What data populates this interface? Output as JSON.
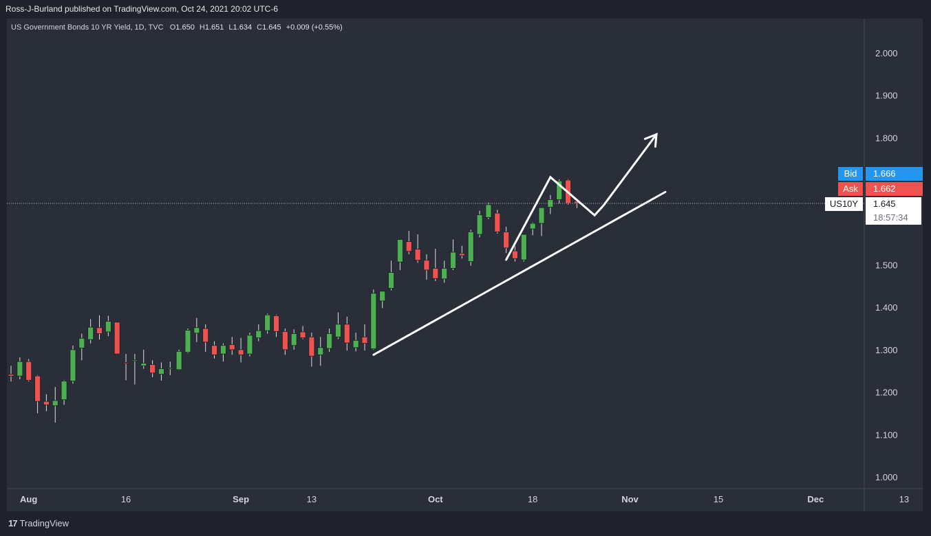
{
  "header": {
    "published": "Ross-J-Burland published on TradingView.com, Oct 24, 2021 20:02 UTC-6"
  },
  "legend": {
    "title": "US Government Bonds 10 YR Yield, 1D, TVC",
    "o_label": "O",
    "o": "1.650",
    "h_label": "H",
    "h": "1.651",
    "l_label": "L",
    "l": "1.634",
    "c_label": "C",
    "c": "1.645",
    "change": "+0.009 (+0.55%)"
  },
  "price_scale": {
    "bid_label": "Bid",
    "bid": "1.666",
    "ask_label": "Ask",
    "ask": "1.662",
    "symbol": "US10Y",
    "last": "1.645",
    "countdown": "18:57:34"
  },
  "colors": {
    "up": "#4caf50",
    "down": "#ef5350",
    "background": "#2a2e39",
    "drawing": "#ffffff",
    "bid": "#2196f3",
    "ask": "#ef5350"
  },
  "footer": {
    "brand": "TradingView"
  },
  "chart_data": {
    "type": "candlestick",
    "title": "US Government Bonds 10 YR Yield, 1D, TVC",
    "ylim": [
      0.97,
      2.1
    ],
    "y_ticks": [
      "2.000",
      "1.900",
      "1.800",
      "1.500",
      "1.400",
      "1.300",
      "1.200",
      "1.100",
      "1.000"
    ],
    "x_ticks": [
      {
        "label": "Aug",
        "i": 2
      },
      {
        "label": "16",
        "i": 13
      },
      {
        "label": "Sep",
        "i": 26
      },
      {
        "label": "13",
        "i": 34
      },
      {
        "label": "Oct",
        "i": 48
      },
      {
        "label": "18",
        "i": 59
      },
      {
        "label": "Nov",
        "i": 70
      },
      {
        "label": "15",
        "i": 80
      },
      {
        "label": "Dec",
        "i": 91
      },
      {
        "label": "13",
        "i": 101
      }
    ],
    "candles": [
      {
        "o": 1.242,
        "h": 1.262,
        "l": 1.225,
        "c": 1.238
      },
      {
        "o": 1.238,
        "h": 1.282,
        "l": 1.23,
        "c": 1.272
      },
      {
        "o": 1.272,
        "h": 1.278,
        "l": 1.225,
        "c": 1.228
      },
      {
        "o": 1.238,
        "h": 1.24,
        "l": 1.15,
        "c": 1.178
      },
      {
        "o": 1.178,
        "h": 1.195,
        "l": 1.155,
        "c": 1.17
      },
      {
        "o": 1.168,
        "h": 1.212,
        "l": 1.128,
        "c": 1.18
      },
      {
        "o": 1.182,
        "h": 1.228,
        "l": 1.17,
        "c": 1.226
      },
      {
        "o": 1.226,
        "h": 1.31,
        "l": 1.22,
        "c": 1.3
      },
      {
        "o": 1.304,
        "h": 1.338,
        "l": 1.275,
        "c": 1.327
      },
      {
        "o": 1.324,
        "h": 1.372,
        "l": 1.315,
        "c": 1.353
      },
      {
        "o": 1.352,
        "h": 1.381,
        "l": 1.324,
        "c": 1.338
      },
      {
        "o": 1.342,
        "h": 1.38,
        "l": 1.332,
        "c": 1.367
      },
      {
        "o": 1.365,
        "h": 1.365,
        "l": 1.29,
        "c": 1.29
      },
      {
        "o": 1.27,
        "h": 1.29,
        "l": 1.228,
        "c": 1.268
      },
      {
        "o": 1.275,
        "h": 1.29,
        "l": 1.218,
        "c": 1.276
      },
      {
        "o": 1.262,
        "h": 1.3,
        "l": 1.255,
        "c": 1.268
      },
      {
        "o": 1.265,
        "h": 1.275,
        "l": 1.235,
        "c": 1.245
      },
      {
        "o": 1.242,
        "h": 1.27,
        "l": 1.227,
        "c": 1.255
      },
      {
        "o": 1.255,
        "h": 1.272,
        "l": 1.24,
        "c": 1.257
      },
      {
        "o": 1.253,
        "h": 1.3,
        "l": 1.252,
        "c": 1.296
      },
      {
        "o": 1.294,
        "h": 1.35,
        "l": 1.292,
        "c": 1.346
      },
      {
        "o": 1.339,
        "h": 1.375,
        "l": 1.318,
        "c": 1.352
      },
      {
        "o": 1.35,
        "h": 1.36,
        "l": 1.295,
        "c": 1.318
      },
      {
        "o": 1.31,
        "h": 1.32,
        "l": 1.279,
        "c": 1.288
      },
      {
        "o": 1.29,
        "h": 1.315,
        "l": 1.272,
        "c": 1.31
      },
      {
        "o": 1.312,
        "h": 1.33,
        "l": 1.288,
        "c": 1.3
      },
      {
        "o": 1.3,
        "h": 1.328,
        "l": 1.27,
        "c": 1.288
      },
      {
        "o": 1.29,
        "h": 1.34,
        "l": 1.284,
        "c": 1.334
      },
      {
        "o": 1.328,
        "h": 1.36,
        "l": 1.32,
        "c": 1.345
      },
      {
        "o": 1.345,
        "h": 1.385,
        "l": 1.338,
        "c": 1.382
      },
      {
        "o": 1.38,
        "h": 1.382,
        "l": 1.33,
        "c": 1.343
      },
      {
        "o": 1.343,
        "h": 1.35,
        "l": 1.288,
        "c": 1.3
      },
      {
        "o": 1.31,
        "h": 1.348,
        "l": 1.3,
        "c": 1.338
      },
      {
        "o": 1.342,
        "h": 1.356,
        "l": 1.325,
        "c": 1.328
      },
      {
        "o": 1.33,
        "h": 1.34,
        "l": 1.26,
        "c": 1.285
      },
      {
        "o": 1.288,
        "h": 1.33,
        "l": 1.262,
        "c": 1.305
      },
      {
        "o": 1.303,
        "h": 1.35,
        "l": 1.295,
        "c": 1.338
      },
      {
        "o": 1.33,
        "h": 1.388,
        "l": 1.325,
        "c": 1.36
      },
      {
        "o": 1.36,
        "h": 1.378,
        "l": 1.298,
        "c": 1.316
      },
      {
        "o": 1.305,
        "h": 1.34,
        "l": 1.296,
        "c": 1.322
      },
      {
        "o": 1.33,
        "h": 1.36,
        "l": 1.298,
        "c": 1.315
      },
      {
        "o": 1.302,
        "h": 1.442,
        "l": 1.3,
        "c": 1.433
      },
      {
        "o": 1.415,
        "h": 1.438,
        "l": 1.398,
        "c": 1.438
      },
      {
        "o": 1.445,
        "h": 1.51,
        "l": 1.44,
        "c": 1.482
      },
      {
        "o": 1.507,
        "h": 1.56,
        "l": 1.488,
        "c": 1.56
      },
      {
        "o": 1.555,
        "h": 1.58,
        "l": 1.525,
        "c": 1.532
      },
      {
        "o": 1.537,
        "h": 1.572,
        "l": 1.505,
        "c": 1.511
      },
      {
        "o": 1.511,
        "h": 1.525,
        "l": 1.465,
        "c": 1.488
      },
      {
        "o": 1.492,
        "h": 1.538,
        "l": 1.462,
        "c": 1.468
      },
      {
        "o": 1.467,
        "h": 1.51,
        "l": 1.458,
        "c": 1.492
      },
      {
        "o": 1.492,
        "h": 1.56,
        "l": 1.488,
        "c": 1.53
      },
      {
        "o": 1.527,
        "h": 1.545,
        "l": 1.515,
        "c": 1.522
      },
      {
        "o": 1.508,
        "h": 1.583,
        "l": 1.498,
        "c": 1.578
      },
      {
        "o": 1.572,
        "h": 1.628,
        "l": 1.565,
        "c": 1.618
      },
      {
        "o": 1.612,
        "h": 1.647,
        "l": 1.608,
        "c": 1.642
      },
      {
        "o": 1.622,
        "h": 1.63,
        "l": 1.574,
        "c": 1.578
      },
      {
        "o": 1.578,
        "h": 1.59,
        "l": 1.528,
        "c": 1.54
      },
      {
        "o": 1.533,
        "h": 1.544,
        "l": 1.508,
        "c": 1.515
      },
      {
        "o": 1.512,
        "h": 1.572,
        "l": 1.508,
        "c": 1.572
      },
      {
        "o": 1.585,
        "h": 1.6,
        "l": 1.57,
        "c": 1.598
      },
      {
        "o": 1.598,
        "h": 1.635,
        "l": 1.568,
        "c": 1.635
      },
      {
        "o": 1.636,
        "h": 1.665,
        "l": 1.62,
        "c": 1.654
      },
      {
        "o": 1.654,
        "h": 1.702,
        "l": 1.645,
        "c": 1.698
      },
      {
        "o": 1.7,
        "h": 1.702,
        "l": 1.642,
        "c": 1.645
      },
      {
        "o": 1.65,
        "h": 1.651,
        "l": 1.634,
        "c": 1.645
      }
    ],
    "last_price": 1.645,
    "drawings": [
      {
        "type": "trendline",
        "from": {
          "i": 41,
          "y": 1.288
        },
        "to": {
          "i": 74,
          "y": 1.672
        }
      },
      {
        "type": "polyline",
        "points": [
          {
            "i": 56,
            "y": 1.512
          },
          {
            "i": 61,
            "y": 1.707
          },
          {
            "i": 66,
            "y": 1.617
          },
          {
            "i": 67,
            "y": 1.64
          },
          {
            "i": 73,
            "y": 1.808
          }
        ],
        "arrow_end": true
      }
    ]
  }
}
